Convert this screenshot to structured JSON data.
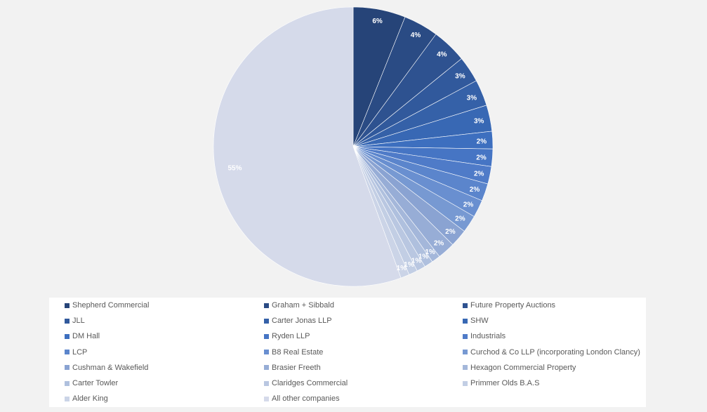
{
  "chart_data": {
    "type": "pie",
    "title": "",
    "slices": [
      {
        "label": "Shepherd Commercial",
        "value": 6,
        "data_label": "6%",
        "color": "#264478"
      },
      {
        "label": "Graham + Sibbald",
        "value": 4,
        "data_label": "4%",
        "color": "#2a4b84"
      },
      {
        "label": "Future Property Auctions",
        "value": 4,
        "data_label": "4%",
        "color": "#2e5290"
      },
      {
        "label": "JLL",
        "value": 3,
        "data_label": "3%",
        "color": "#31599c"
      },
      {
        "label": "Carter Jonas LLP",
        "value": 3,
        "data_label": "3%",
        "color": "#3561a8"
      },
      {
        "label": "SHW",
        "value": 3,
        "data_label": "3%",
        "color": "#3868b4"
      },
      {
        "label": "DM Hall",
        "value": 2,
        "data_label": "2%",
        "color": "#3d6fbf"
      },
      {
        "label": "Ryden LLP",
        "value": 2,
        "data_label": "2%",
        "color": "#4675c4"
      },
      {
        "label": "Industrials",
        "value": 2,
        "data_label": "2%",
        "color": "#4f7bc8"
      },
      {
        "label": "LCP",
        "value": 2,
        "data_label": "2%",
        "color": "#5b85cc"
      },
      {
        "label": "B8 Real Estate",
        "value": 2,
        "data_label": "2%",
        "color": "#698fd0"
      },
      {
        "label": "Curchod & Co LLP (incorporating London Clancy)",
        "value": 2,
        "data_label": "2%",
        "color": "#7799d2"
      },
      {
        "label": "Cushman & Wakefield",
        "value": 2,
        "data_label": "2%",
        "color": "#8aa3d2"
      },
      {
        "label": "Brasier Freeth",
        "value": 2,
        "data_label": "2%",
        "color": "#97add6"
      },
      {
        "label": "Hexagon Commercial Property",
        "value": 1,
        "data_label": "1%",
        "color": "#a4b7da"
      },
      {
        "label": "Carter Towler",
        "value": 1,
        "data_label": "1%",
        "color": "#afc0de"
      },
      {
        "label": "Claridges Commercial",
        "value": 1,
        "data_label": "1%",
        "color": "#b9c7e1"
      },
      {
        "label": "Primmer Olds B.A.S",
        "value": 1,
        "data_label": "1%",
        "color": "#c2cee4"
      },
      {
        "label": "Alder King",
        "value": 1,
        "data_label": "1%",
        "color": "#cbd4e7"
      },
      {
        "label": "All other companies",
        "value": 55,
        "data_label": "55%",
        "color": "#d5daea"
      }
    ],
    "legend_position": "bottom",
    "legend_columns": 3
  }
}
